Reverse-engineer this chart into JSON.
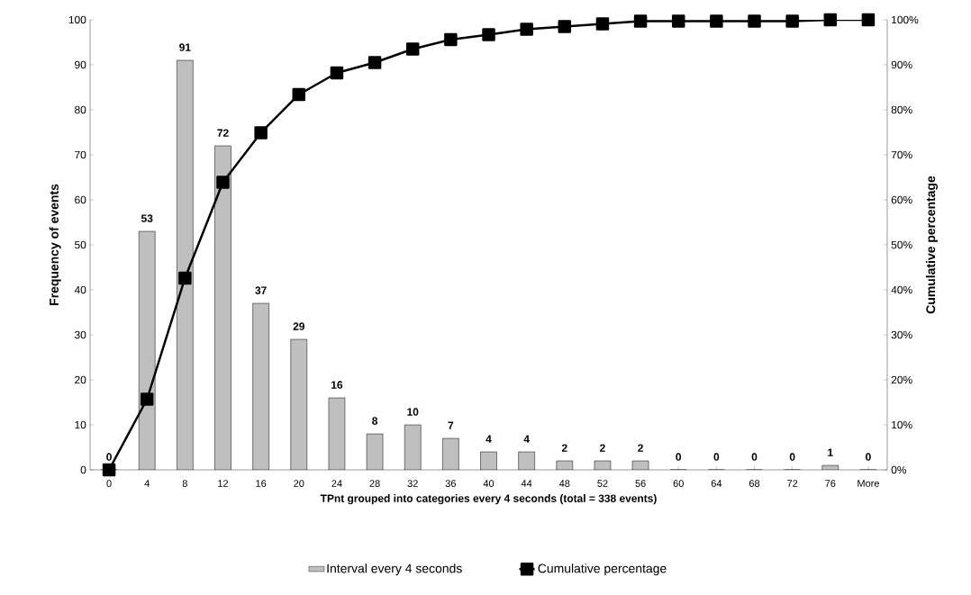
{
  "chart_data": {
    "type": "bar",
    "xlabel": "TPnt grouped into categories every 4 seconds (total = 338 events)",
    "ylabel": "Frequency of events",
    "y2label": "Cumulative percentage",
    "categories": [
      "0",
      "4",
      "8",
      "12",
      "16",
      "20",
      "24",
      "28",
      "32",
      "36",
      "40",
      "44",
      "48",
      "52",
      "56",
      "60",
      "64",
      "68",
      "72",
      "76",
      "More"
    ],
    "series": [
      {
        "name": "Interval every 4 seconds",
        "color": "#bfbfbf",
        "values": [
          0,
          53,
          91,
          72,
          37,
          29,
          16,
          8,
          10,
          7,
          4,
          4,
          2,
          2,
          2,
          0,
          0,
          0,
          0,
          1,
          0
        ],
        "value_labels": [
          "0",
          "53",
          "91",
          "72",
          "37",
          "29",
          "16",
          "8",
          "10",
          "7",
          "4",
          "4",
          "2",
          "2",
          "2",
          "0",
          "0",
          "0",
          "0",
          "1",
          "0"
        ]
      },
      {
        "name": "Cumulative percentage",
        "type": "line",
        "axis": "y2",
        "color": "#000000",
        "marker": "square",
        "values": [
          0,
          15.7,
          42.6,
          63.9,
          74.9,
          83.4,
          88.2,
          90.5,
          93.5,
          95.6,
          96.7,
          97.9,
          98.5,
          99.1,
          99.7,
          99.7,
          99.7,
          99.7,
          99.7,
          100,
          100
        ]
      }
    ],
    "ylim": [
      0,
      100
    ],
    "yticks": [
      0,
      10,
      20,
      30,
      40,
      50,
      60,
      70,
      80,
      90,
      100
    ],
    "y2lim": [
      0,
      100
    ],
    "y2ticks": [
      {
        "value": 0,
        "label": "0%"
      },
      {
        "value": 10,
        "label": "10%"
      },
      {
        "value": 20,
        "label": "20%"
      },
      {
        "value": 30,
        "label": "30%"
      },
      {
        "value": 40,
        "label": "40%"
      },
      {
        "value": 50,
        "label": "50%"
      },
      {
        "value": 60,
        "label": "60%"
      },
      {
        "value": 70,
        "label": "70%"
      },
      {
        "value": 80,
        "label": "80%"
      },
      {
        "value": 90,
        "label": "90%"
      },
      {
        "value": 100,
        "label": "100%"
      }
    ],
    "grid": false,
    "legend": "bottom"
  }
}
